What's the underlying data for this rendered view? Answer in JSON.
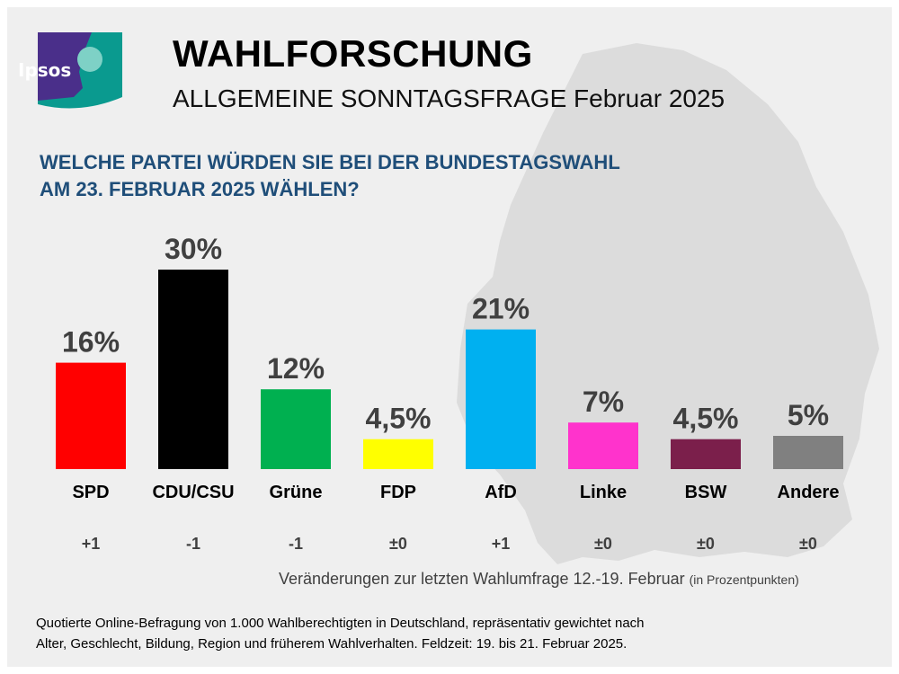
{
  "header": {
    "logo_text": "Ipsos",
    "title": "WAHLFORSCHUNG",
    "subtitle": "ALLGEMEINE SONNTAGSFRAGE Februar 2025",
    "question_line1": "WELCHE PARTEI WÜRDEN SIE BEI DER BUNDESTAGSWAHL",
    "question_line2": "AM 23. FEBRUAR 2025 WÄHLEN?"
  },
  "chart_data": {
    "type": "bar",
    "title": "WELCHE PARTEI WÜRDEN SIE BEI DER BUNDESTAGSWAHL AM 23. FEBRUAR 2025 WÄHLEN?",
    "categories": [
      "SPD",
      "CDU/CSU",
      "Grüne",
      "FDP",
      "AfD",
      "Linke",
      "BSW",
      "Andere"
    ],
    "values": [
      16,
      30,
      12,
      4.5,
      21,
      7,
      4.5,
      5
    ],
    "value_labels": [
      "16%",
      "30%",
      "12%",
      "4,5%",
      "21%",
      "7%",
      "4,5%",
      "5%"
    ],
    "changes": [
      "+1",
      "-1",
      "-1",
      "±0",
      "+1",
      "±0",
      "±0",
      "±0"
    ],
    "colors": [
      "#ff0000",
      "#000000",
      "#00b050",
      "#ffff00",
      "#00b0f0",
      "#ff33cc",
      "#7b1f4b",
      "#808080"
    ],
    "ylim": [
      0,
      30
    ],
    "grid": false,
    "legend": "none"
  },
  "notes": {
    "change_text": "Veränderungen zur letzten Wahlumfrage 12.-19. Februar",
    "change_unit": "(in Prozentpunkten)",
    "footnote_line1": "Quotierte Online-Befragung von 1.000 Wahlberechtigten in Deutschland, repräsentativ gewichtet nach",
    "footnote_line2": "Alter, Geschlecht, Bildung, Region und früherem Wahlverhalten. Feldzeit: 19. bis 21. Februar 2025."
  }
}
